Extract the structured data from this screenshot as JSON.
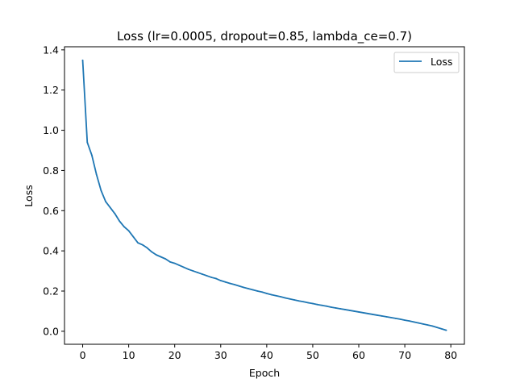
{
  "chart_data": {
    "type": "line",
    "title": "Loss (lr=0.0005, dropout=0.85, lambda_ce=0.7)",
    "xlabel": "Epoch",
    "ylabel": "Loss",
    "xlim": [
      -3.95,
      82.95
    ],
    "ylim": [
      -0.0647,
      1.4154
    ],
    "xticks": [
      0,
      10,
      20,
      30,
      40,
      50,
      60,
      70,
      80
    ],
    "yticks": [
      0.0,
      0.2,
      0.4,
      0.6,
      0.8,
      1.0,
      1.2,
      1.4
    ],
    "ytick_labels": [
      "0.0",
      "0.2",
      "0.4",
      "0.6",
      "0.8",
      "1.0",
      "1.2",
      "1.4"
    ],
    "grid": false,
    "legend_position": "upper right",
    "series_color": "#1f77b4",
    "series": [
      {
        "name": "Loss",
        "x": [
          0,
          1,
          2,
          3,
          4,
          5,
          6,
          7,
          8,
          9,
          10,
          11,
          12,
          13,
          14,
          15,
          16,
          17,
          18,
          19,
          20,
          21,
          22,
          23,
          24,
          25,
          26,
          27,
          28,
          29,
          30,
          31,
          32,
          33,
          34,
          35,
          36,
          37,
          38,
          39,
          40,
          41,
          42,
          43,
          44,
          45,
          46,
          47,
          48,
          49,
          50,
          51,
          52,
          53,
          54,
          55,
          56,
          57,
          58,
          59,
          60,
          61,
          62,
          63,
          64,
          65,
          66,
          67,
          68,
          69,
          70,
          71,
          72,
          73,
          74,
          75,
          76,
          77,
          78,
          79
        ],
        "values": [
          1.348,
          0.94,
          0.875,
          0.78,
          0.7,
          0.645,
          0.615,
          0.585,
          0.548,
          0.52,
          0.5,
          0.47,
          0.44,
          0.43,
          0.415,
          0.395,
          0.38,
          0.37,
          0.36,
          0.345,
          0.338,
          0.328,
          0.318,
          0.308,
          0.3,
          0.292,
          0.284,
          0.276,
          0.268,
          0.262,
          0.252,
          0.245,
          0.238,
          0.232,
          0.225,
          0.218,
          0.212,
          0.206,
          0.2,
          0.195,
          0.188,
          0.182,
          0.177,
          0.172,
          0.166,
          0.161,
          0.156,
          0.151,
          0.147,
          0.142,
          0.138,
          0.133,
          0.129,
          0.125,
          0.12,
          0.116,
          0.112,
          0.108,
          0.104,
          0.1,
          0.096,
          0.092,
          0.088,
          0.084,
          0.08,
          0.076,
          0.072,
          0.068,
          0.064,
          0.06,
          0.055,
          0.051,
          0.046,
          0.041,
          0.036,
          0.031,
          0.026,
          0.019,
          0.012,
          0.005
        ]
      }
    ]
  }
}
